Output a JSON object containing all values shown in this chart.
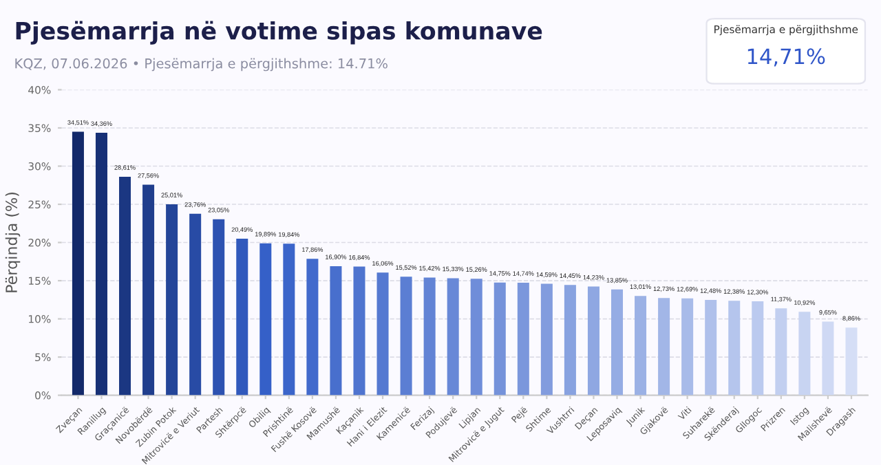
{
  "chart_data": {
    "type": "bar",
    "title": "Pjesëmarrja në votime sipas komunave",
    "subtitle": "KQZ, 07.06.2026 • Pjesëmarrja e përgjithshme: 14.71%",
    "ylabel": "Përqindja (%)",
    "annotations": [
      "Pjesëmarrja e përgjithshme",
      "14,71%"
    ],
    "categories": [
      "Zveçan",
      "Ranillug",
      "Graçanicë",
      "Novobërdë",
      "Zubin Potok",
      "Mitrovicë e Veriut",
      "Partesh",
      "Shtërpcë",
      "Obiliq",
      "Prishtinë",
      "Fushë Kosovë",
      "Mamushë",
      "Kaçanik",
      "Hani i Elezit",
      "Kamenicë",
      "Ferizaj",
      "Podujevë",
      "Lipjan",
      "Mitrovicë e Jugut",
      "Pejë",
      "Shtime",
      "Vushtrri",
      "Deçan",
      "Leposaviq",
      "Junik",
      "Gjakovë",
      "Viti",
      "Suharekë",
      "Skënderaj",
      "Gllogoc",
      "Prizren",
      "Istog",
      "Malishevë",
      "Dragash"
    ],
    "values": [
      34.51,
      34.36,
      28.61,
      27.56,
      25.01,
      23.76,
      23.05,
      20.49,
      19.89,
      19.84,
      17.86,
      16.9,
      16.84,
      16.06,
      15.52,
      15.42,
      15.33,
      15.26,
      14.75,
      14.74,
      14.59,
      14.45,
      14.23,
      13.85,
      13.01,
      12.73,
      12.69,
      12.48,
      12.38,
      12.3,
      11.37,
      10.92,
      9.65,
      8.86
    ],
    "value_labels": [
      "34,51%",
      "34,36%",
      "28,61%",
      "27,56%",
      "25,01%",
      "23,76%",
      "23,05%",
      "20,49%",
      "19,89%",
      "19,84%",
      "17,86%",
      "16,90%",
      "16,84%",
      "16,06%",
      "15,52%",
      "15,42%",
      "15,33%",
      "15,26%",
      "14,75%",
      "14,74%",
      "14,59%",
      "14,45%",
      "14,23%",
      "13,85%",
      "13,01%",
      "12,73%",
      "12,69%",
      "12,48%",
      "12,38%",
      "12,30%",
      "11,37%",
      "10,92%",
      "9,65%",
      "8,86%"
    ],
    "colors": [
      "#13296a",
      "#173076",
      "#1b3782",
      "#203e8d",
      "#244599",
      "#284ba5",
      "#2d52b1",
      "#3159bc",
      "#3560c8",
      "#3b65ca",
      "#426acc",
      "#486fcd",
      "#4f74cf",
      "#5579d1",
      "#5b7ed3",
      "#6283d5",
      "#6888d7",
      "#6f8dd9",
      "#7592da",
      "#7b97dc",
      "#829cde",
      "#88a2e0",
      "#8fa7e2",
      "#95ace4",
      "#9bb1e5",
      "#a2b6e7",
      "#a8bbe9",
      "#afc0eb",
      "#b5c5ed",
      "#bbcaef",
      "#c2cff0",
      "#c8d4f2",
      "#cfd9f4",
      "#d5def6"
    ],
    "ylim": [
      0,
      40
    ],
    "yticks": [
      {
        "value": 0,
        "label": "0%"
      },
      {
        "value": 5,
        "label": "5%"
      },
      {
        "value": 10,
        "label": "10%"
      },
      {
        "value": 15,
        "label": "15%"
      },
      {
        "value": 20,
        "label": "20%"
      },
      {
        "value": 25,
        "label": "25%"
      },
      {
        "value": 30,
        "label": "30%"
      },
      {
        "value": 35,
        "label": "35%"
      },
      {
        "value": 40,
        "label": "40%"
      }
    ],
    "grid": "y",
    "line_style": "dashed",
    "legend": false
  }
}
